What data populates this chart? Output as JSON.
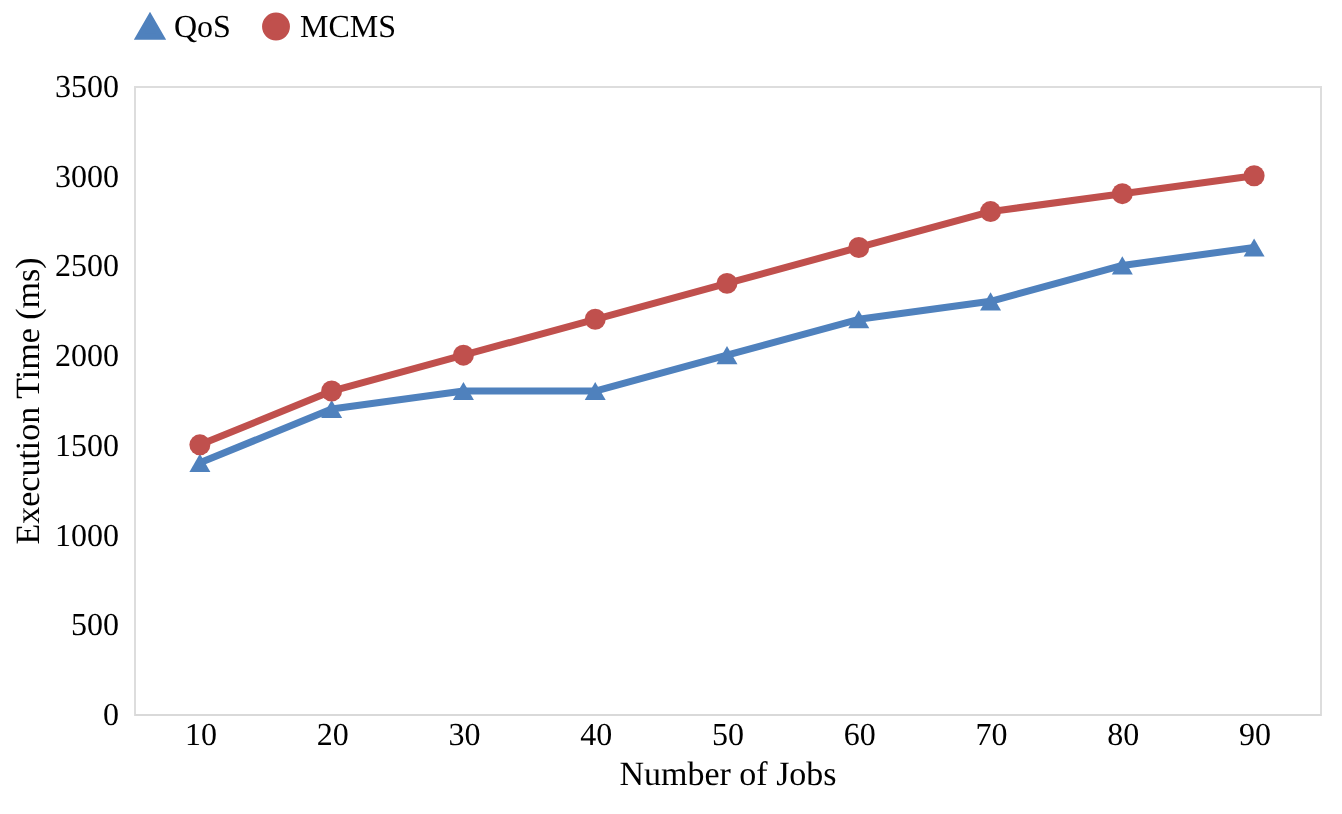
{
  "chart_data": {
    "type": "line",
    "xlabel": "Number of Jobs",
    "ylabel": "Execution Time (ms)",
    "categories": [
      "10",
      "20",
      "30",
      "40",
      "50",
      "60",
      "70",
      "80",
      "90"
    ],
    "series": [
      {
        "name": "QoS",
        "color": "#4f81bd",
        "marker": "triangle",
        "values": [
          1400,
          1700,
          1800,
          1800,
          2000,
          2200,
          2300,
          2500,
          2600
        ]
      },
      {
        "name": "MCMS",
        "color": "#c0504d",
        "marker": "circle",
        "values": [
          1500,
          1800,
          2000,
          2200,
          2400,
          2600,
          2800,
          2900,
          3000
        ]
      }
    ],
    "ylim": [
      0,
      3500
    ],
    "yticks": [
      0,
      500,
      1000,
      1500,
      2000,
      2500,
      3000,
      3500
    ],
    "grid": false,
    "legend": "top",
    "line_style": "solid"
  }
}
